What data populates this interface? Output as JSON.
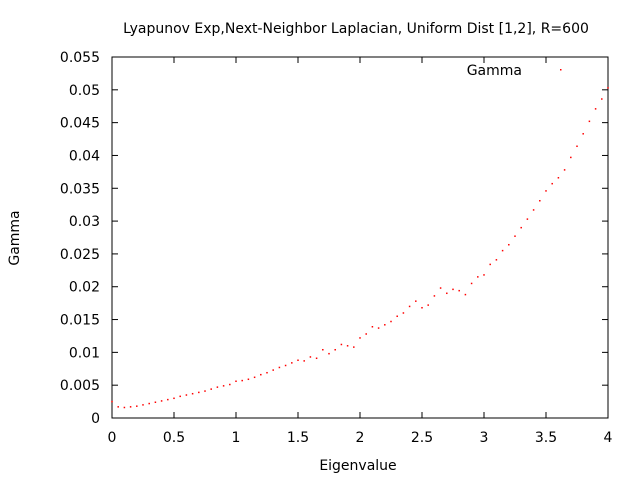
{
  "chart_data": {
    "type": "scatter",
    "title": "Lyapunov Exp,Next-Neighbor Laplacian, Uniform Dist [1,2], R=600",
    "xlabel": "Eigenvalue",
    "ylabel": "Gamma",
    "xlim": [
      0,
      4
    ],
    "ylim": [
      0,
      0.055
    ],
    "xticks": [
      "0",
      "0.5",
      "1",
      "1.5",
      "2",
      "2.5",
      "3",
      "3.5",
      "4"
    ],
    "yticks": [
      "0",
      "0.005",
      "0.01",
      "0.015",
      "0.02",
      "0.025",
      "0.03",
      "0.035",
      "0.04",
      "0.045",
      "0.05",
      "0.055"
    ],
    "grid": false,
    "legend": {
      "position": "top-right"
    },
    "series": [
      {
        "name": "Gamma",
        "color": "#ff0000",
        "marker": "dot",
        "x": [
          0.0,
          0.05,
          0.1,
          0.15,
          0.2,
          0.25,
          0.3,
          0.35,
          0.4,
          0.45,
          0.5,
          0.55,
          0.6,
          0.65,
          0.7,
          0.75,
          0.8,
          0.85,
          0.9,
          0.95,
          1.0,
          1.05,
          1.1,
          1.15,
          1.2,
          1.25,
          1.3,
          1.35,
          1.4,
          1.45,
          1.5,
          1.55,
          1.6,
          1.65,
          1.7,
          1.75,
          1.8,
          1.85,
          1.9,
          1.95,
          2.0,
          2.05,
          2.1,
          2.15,
          2.2,
          2.25,
          2.3,
          2.35,
          2.4,
          2.45,
          2.5,
          2.55,
          2.6,
          2.65,
          2.7,
          2.75,
          2.8,
          2.85,
          2.9,
          2.95,
          3.0,
          3.05,
          3.1,
          3.15,
          3.2,
          3.25,
          3.3,
          3.35,
          3.4,
          3.45,
          3.5,
          3.55,
          3.6,
          3.65,
          3.7,
          3.75,
          3.8,
          3.85,
          3.9,
          3.95,
          4.0
        ],
        "y": [
          0.0025,
          0.0017,
          0.0016,
          0.0017,
          0.0018,
          0.002,
          0.0022,
          0.0024,
          0.0026,
          0.0028,
          0.003,
          0.0033,
          0.0035,
          0.0037,
          0.0039,
          0.0041,
          0.0044,
          0.0047,
          0.0049,
          0.0051,
          0.0056,
          0.0057,
          0.0059,
          0.0062,
          0.0066,
          0.0069,
          0.0073,
          0.0077,
          0.008,
          0.0084,
          0.0088,
          0.0087,
          0.0093,
          0.0091,
          0.0104,
          0.0098,
          0.0104,
          0.0112,
          0.011,
          0.0108,
          0.0122,
          0.0128,
          0.0139,
          0.0137,
          0.0142,
          0.0147,
          0.0155,
          0.016,
          0.017,
          0.0178,
          0.0168,
          0.0172,
          0.0186,
          0.0198,
          0.019,
          0.0196,
          0.0194,
          0.0188,
          0.0205,
          0.0215,
          0.0218,
          0.0234,
          0.0241,
          0.0255,
          0.0264,
          0.0277,
          0.029,
          0.0303,
          0.0317,
          0.0331,
          0.0346,
          0.0357,
          0.0366,
          0.0378,
          0.0397,
          0.0414,
          0.0433,
          0.0452,
          0.0471,
          0.0486,
          0.0503
        ]
      }
    ]
  }
}
